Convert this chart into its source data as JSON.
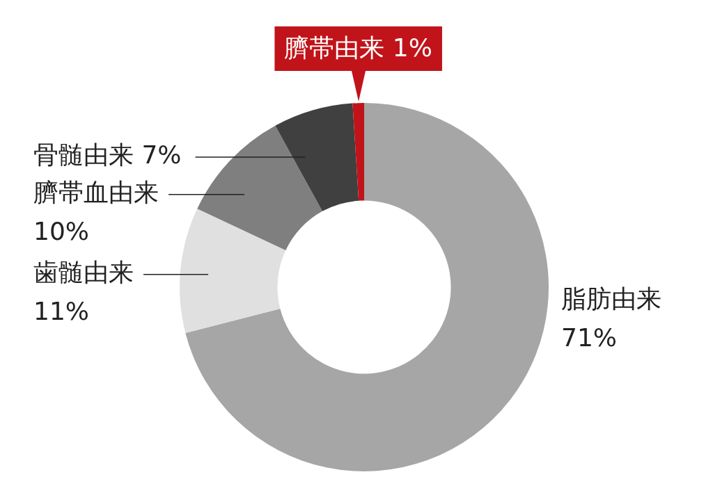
{
  "chart_data": {
    "type": "donut",
    "categories": [
      "脂肪由来",
      "歯髄由来",
      "臍帯血由来",
      "骨髄由来",
      "臍帯由来"
    ],
    "values": [
      71,
      11,
      10,
      7,
      1
    ],
    "colors": [
      "#a6a6a6",
      "#e0e0e0",
      "#7f7f7f",
      "#404040",
      "#c0141a"
    ],
    "value_labels": [
      "71%",
      "11%",
      "10%",
      "7%",
      "1%"
    ]
  }
}
